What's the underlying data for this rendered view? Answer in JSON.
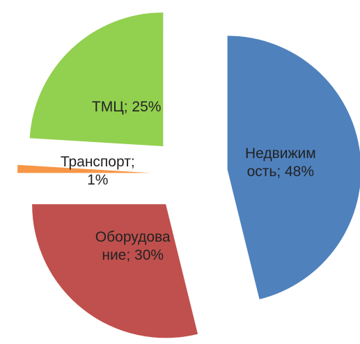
{
  "chart_data": {
    "type": "pie",
    "values": [
      48,
      30,
      1,
      25
    ],
    "value_labels": [
      "Недвижимость; 48%",
      "Оборудование; 30%",
      "Транспорт; 1%",
      "ТМЦ; 25%"
    ],
    "colors": [
      "#4f81bd",
      "#c0504d",
      "#f79646",
      "#92d050"
    ],
    "exploded": true
  }
}
